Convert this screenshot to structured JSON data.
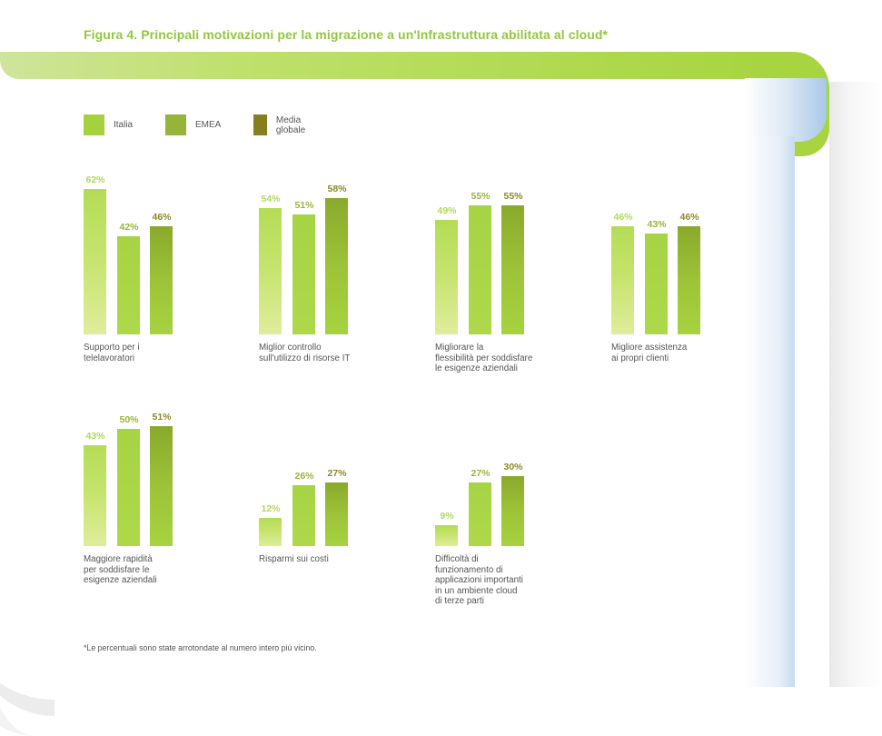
{
  "chart_data": {
    "type": "bar",
    "title": "Figura 4. Principali motivazioni per la migrazione a un'Infrastruttura abilitata al cloud*",
    "xlabel": "",
    "ylabel": "",
    "ylim": [
      0,
      62
    ],
    "grid": false,
    "legend_position": "top-left",
    "series": [
      {
        "name": "Italia",
        "color": "#a6d13f"
      },
      {
        "name": "EMEA",
        "color": "#94b53a"
      },
      {
        "name": "Media globale",
        "color": "#857f1e"
      }
    ],
    "groups": [
      {
        "category": "Supporto per i telelavoratori",
        "lines": [
          "Supporto per i",
          "telelavoratori"
        ],
        "values": [
          62,
          42,
          46
        ],
        "labels": [
          "62%",
          "42%",
          "46%"
        ]
      },
      {
        "category": "Miglior controllo sull'utilizzo di risorse IT",
        "lines": [
          "Miglior controllo",
          "sull'utilizzo di risorse IT"
        ],
        "values": [
          54,
          51,
          58
        ],
        "labels": [
          "54%",
          "51%",
          "58%"
        ]
      },
      {
        "category": "Migliorare la flessibilità per soddisfare le esigenze aziendali",
        "lines": [
          "Migliorare la",
          "flessibilità per soddisfare",
          "le esigenze aziendali"
        ],
        "values": [
          49,
          55,
          55
        ],
        "labels": [
          "49%",
          "55%",
          "55%"
        ]
      },
      {
        "category": "Migliore assistenza ai propri clienti",
        "lines": [
          "Migliore assistenza",
          "ai propri clienti"
        ],
        "values": [
          46,
          43,
          46
        ],
        "labels": [
          "46%",
          "43%",
          "46%"
        ]
      },
      {
        "category": "Maggiore rapidità per soddisfare le esigenze aziendali",
        "lines": [
          "Maggiore rapidità",
          "per soddisfare le",
          "esigenze aziendali"
        ],
        "values": [
          43,
          50,
          51
        ],
        "labels": [
          "43%",
          "50%",
          "51%"
        ]
      },
      {
        "category": "Risparmi sui costi",
        "lines": [
          "Risparmi sui costi"
        ],
        "values": [
          12,
          26,
          27
        ],
        "labels": [
          "12%",
          "26%",
          "27%"
        ]
      },
      {
        "category": "Difficoltà di funzionamento di applicazioni importanti in un ambiente cloud di terze parti",
        "lines": [
          "Difficoltà di",
          "funzionamento di",
          "applicazioni importanti",
          "in un ambiente cloud",
          "di terze parti"
        ],
        "values": [
          9,
          27,
          30
        ],
        "labels": [
          "9%",
          "27%",
          "30%"
        ]
      }
    ],
    "footnote": "*Le percentuali sono state arrotondate al numero intero più vicino."
  }
}
